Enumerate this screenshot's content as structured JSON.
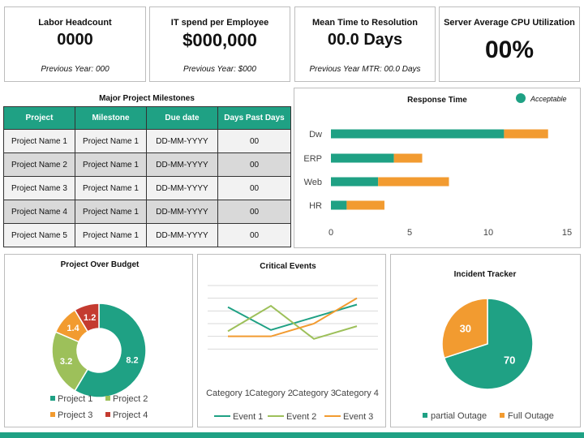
{
  "kpis": [
    {
      "title": "Labor Headcount",
      "value": "0000",
      "sub": "Previous Year: 000"
    },
    {
      "title": "IT spend per Employee",
      "value": "$000,000",
      "sub": "Previous Year: $000"
    },
    {
      "title": "Mean Time to Resolution",
      "value": "00.0 Days",
      "sub": "Previous Year MTR: 00.0 Days"
    },
    {
      "title": "Server Average CPU Utilization",
      "value": "00%"
    }
  ],
  "milestones": {
    "title": "Major Project Milestones",
    "headers": [
      "Project",
      "Milestone",
      "Due date",
      "Days Past Days"
    ],
    "rows": [
      [
        "Project Name 1",
        "Project Name 1",
        "DD-MM-YYYY",
        "00"
      ],
      [
        "Project Name 2",
        "Project Name 1",
        "DD-MM-YYYY",
        "00"
      ],
      [
        "Project Name 3",
        "Project Name 1",
        "DD-MM-YYYY",
        "00"
      ],
      [
        "Project Name 4",
        "Project Name 1",
        "DD-MM-YYYY",
        "00"
      ],
      [
        "Project Name 5",
        "Project Name 1",
        "DD-MM-YYYY",
        "00"
      ]
    ]
  },
  "colors": {
    "teal": "#1fa184",
    "orange": "#f29b30",
    "green": "#9dc05a",
    "red": "#c43b30",
    "grid": "#d9d9d9"
  },
  "chart_data": [
    {
      "type": "bar",
      "title": "Response Time",
      "orientation": "horizontal",
      "stacked": true,
      "categories": [
        "Dw",
        "ERP",
        "Web",
        "HR"
      ],
      "series": [
        {
          "name": "Acceptable",
          "values": [
            11,
            4,
            3,
            1
          ],
          "color": "#1fa184"
        },
        {
          "values": [
            2.8,
            1.8,
            4.5,
            2.4
          ],
          "color": "#f29b30"
        }
      ],
      "xlim": [
        0,
        15
      ],
      "xticks": [
        0,
        5,
        10,
        15
      ],
      "legend": "top-right"
    },
    {
      "type": "pie",
      "donut": true,
      "title": "Project Over Budget",
      "labels": [
        "Project 1",
        "Project 2",
        "Project 3",
        "Project 4"
      ],
      "values": [
        8.2,
        3.2,
        1.4,
        1.2
      ],
      "colors": [
        "#1fa184",
        "#9dc05a",
        "#f29b30",
        "#c43b30"
      ],
      "legend": "bottom"
    },
    {
      "type": "line",
      "title": "Critical Events",
      "categories": [
        "Category 1",
        "Category 2",
        "Category 3",
        "Category 4"
      ],
      "series": [
        {
          "name": "Event 1",
          "values": [
            4.3,
            2.5,
            3.5,
            4.5
          ],
          "color": "#1fa184"
        },
        {
          "name": "Event 2",
          "values": [
            2.4,
            4.4,
            1.8,
            2.8
          ],
          "color": "#9dc05a"
        },
        {
          "name": "Event 3",
          "values": [
            2.0,
            2.0,
            3.0,
            5.0
          ],
          "color": "#f29b30"
        }
      ],
      "ylim": [
        0,
        6
      ],
      "grid": true,
      "legend": "bottom"
    },
    {
      "type": "pie",
      "title": "Incident Tracker",
      "labels": [
        "partial Outage",
        "Full Outage"
      ],
      "values": [
        70,
        30
      ],
      "colors": [
        "#1fa184",
        "#f29b30"
      ],
      "legend": "bottom"
    }
  ]
}
